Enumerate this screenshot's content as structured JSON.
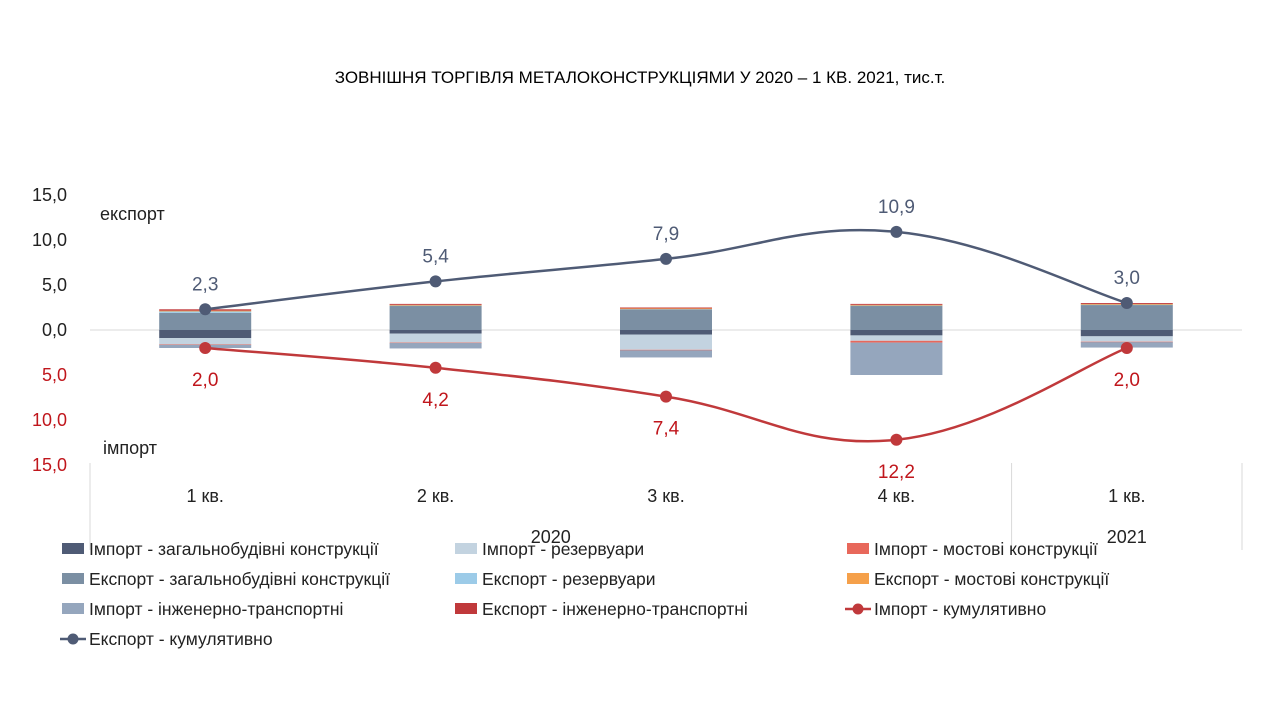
{
  "chart_data": {
    "type": "bar",
    "title": "ЗОВНІШНЯ ТОРГІВЛЯ МЕТАЛОКОНСТРУКЦІЯМИ У 2020 – 1 КВ. 2021, тис.т.",
    "categories": [
      "1 кв.",
      "2 кв.",
      "3 кв.",
      "4 кв.",
      "1 кв."
    ],
    "years": [
      {
        "label": "2020",
        "from": 0,
        "to": 3
      },
      {
        "label": "2021",
        "from": 4,
        "to": 4
      }
    ],
    "yticks_positive": [
      "15,0",
      "10,0",
      "5,0",
      "0,0"
    ],
    "yticks_negative": [
      "5,0",
      "10,0",
      "15,0"
    ],
    "ylim": [
      -15,
      15
    ],
    "upper_label": "експорт",
    "lower_label": "імпорт",
    "grid": false,
    "legend_position": "bottom",
    "stacks_export": [
      {
        "name": "Експорт - загальнобудівні конструкції",
        "color": "#7b8fa3",
        "values": [
          1.9,
          2.7,
          2.3,
          2.7,
          2.8
        ]
      },
      {
        "name": "Експорт - резервуари",
        "color": "#9ccbe8",
        "values": [
          0.2,
          0.05,
          0.05,
          0.05,
          0.05
        ]
      },
      {
        "name": "Експорт - мостові конструкції",
        "color": "#f5a04a",
        "values": [
          0.05,
          0.05,
          0.05,
          0.05,
          0.05
        ]
      },
      {
        "name": "Експорт - інженерно-транспортні",
        "color": "#c0393b",
        "values": [
          0.15,
          0.1,
          0.1,
          0.1,
          0.1
        ]
      }
    ],
    "stacks_import": [
      {
        "name": "Імпорт - загальнобудівні конструкції",
        "color": "#4f5b75",
        "values": [
          0.9,
          0.4,
          0.5,
          0.6,
          0.7
        ]
      },
      {
        "name": "Імпорт - резервуари",
        "color": "#c3d3e0",
        "values": [
          0.7,
          1.0,
          1.7,
          0.6,
          0.6
        ]
      },
      {
        "name": "Імпорт - мостові конструкції",
        "color": "#e8685b",
        "values": [
          0.05,
          0.05,
          0.05,
          0.2,
          0.05
        ]
      },
      {
        "name": "Імпорт - інженерно-транспортні",
        "color": "#95a6bd",
        "values": [
          0.35,
          0.6,
          0.8,
          3.6,
          0.6
        ]
      }
    ],
    "lines": [
      {
        "name": "Експорт - кумулятивно",
        "color": "#4f5b75",
        "values": [
          2.3,
          5.4,
          7.9,
          10.9,
          3.0
        ],
        "labels": [
          "2,3",
          "5,4",
          "7,9",
          "10,9",
          "3,0"
        ]
      },
      {
        "name": "Імпорт - кумулятивно",
        "color": "#c0393b",
        "values": [
          -2.0,
          -4.2,
          -7.4,
          -12.2,
          -2.0
        ],
        "labels": [
          "2,0",
          "4,2",
          "7,4",
          "12,2",
          "2,0"
        ]
      }
    ],
    "legend": [
      {
        "name": "Імпорт - загальнобудівні конструкції",
        "kind": "rect",
        "color": "#4f5b75"
      },
      {
        "name": "Імпорт - резервуари",
        "kind": "rect",
        "color": "#c3d3e0"
      },
      {
        "name": "Імпорт - мостові конструкції",
        "kind": "rect",
        "color": "#e8685b"
      },
      {
        "name": "Експорт - загальнобудівні конструкції",
        "kind": "rect",
        "color": "#7b8fa3"
      },
      {
        "name": "Експорт - резервуари",
        "kind": "rect",
        "color": "#9ccbe8"
      },
      {
        "name": "Експорт - мостові конструкції",
        "kind": "rect",
        "color": "#f5a04a"
      },
      {
        "name": "Імпорт - інженерно-транспортні",
        "kind": "rect",
        "color": "#95a6bd"
      },
      {
        "name": "Експорт - інженерно-транспортні",
        "kind": "rect",
        "color": "#c0393b"
      },
      {
        "name": "Імпорт - кумулятивно",
        "kind": "line",
        "color": "#c0393b"
      },
      {
        "name": "Експорт - кумулятивно",
        "kind": "line",
        "color": "#4f5b75"
      }
    ],
    "tick_color_positive": "#222222",
    "tick_color_negative": "#c0161c",
    "export_label_color": "#4f5b75",
    "import_label_color": "#c0161c"
  }
}
